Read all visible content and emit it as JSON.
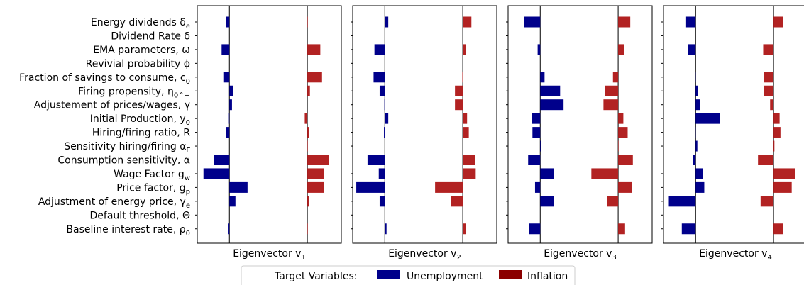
{
  "chart_data": {
    "type": "bar",
    "orientation": "horizontal",
    "categories": [
      "Energy dividends δ_e",
      "Dividend Rate δ",
      "EMA parameters, ω",
      "Revivial probability ϕ",
      "Fraction of savings to consume, c_0",
      "Firing propensity, η_0^−",
      "Adjustement of prices/wages, γ",
      "Initial Production, y_0",
      "Hiring/firing ratio, R",
      "Sensitivity hiring/firing α_Γ",
      "Consumption sensitivity, α",
      "Wage Factor g_w",
      "Price factor, g_p",
      "Adjustment of energy price, γ_e",
      "Default threshold, Θ",
      "Baseline interest rate, ρ_0"
    ],
    "panels": [
      {
        "xlabel": "Eigenvector v_1",
        "series": [
          {
            "name": "Unemployment",
            "values": [
              -0.04,
              0.0,
              -0.09,
              0.0,
              -0.07,
              0.04,
              0.03,
              -0.005,
              -0.04,
              0.0,
              -0.18,
              -0.3,
              0.21,
              0.07,
              0.0,
              -0.01
            ]
          },
          {
            "name": "Inflation",
            "values": [
              0.005,
              0.0,
              0.15,
              0.0,
              0.17,
              0.03,
              0.0,
              -0.03,
              0.02,
              0.005,
              0.25,
              0.19,
              0.19,
              0.02,
              0.0,
              0.005
            ]
          }
        ]
      },
      {
        "xlabel": "Eigenvector v_2",
        "series": [
          {
            "name": "Unemployment",
            "values": [
              0.04,
              0.0,
              -0.12,
              0.0,
              -0.13,
              -0.06,
              -0.005,
              0.04,
              -0.01,
              0.0,
              -0.2,
              -0.07,
              -0.33,
              -0.06,
              0.005,
              0.02
            ]
          },
          {
            "name": "Inflation",
            "values": [
              0.1,
              0.0,
              0.04,
              0.0,
              -0.005,
              -0.09,
              -0.09,
              0.05,
              0.07,
              0.0,
              0.14,
              0.15,
              -0.32,
              -0.14,
              0.0,
              0.04
            ]
          }
        ]
      },
      {
        "xlabel": "Eigenvector v_3",
        "series": [
          {
            "name": "Unemployment",
            "values": [
              -0.19,
              0.0,
              -0.03,
              0.0,
              0.05,
              0.23,
              0.27,
              -0.1,
              -0.09,
              0.01,
              -0.14,
              0.16,
              -0.06,
              0.16,
              0.0,
              -0.13
            ]
          },
          {
            "name": "Inflation",
            "values": [
              0.14,
              0.0,
              0.07,
              0.0,
              -0.06,
              -0.15,
              -0.17,
              0.06,
              0.11,
              0.005,
              0.17,
              -0.31,
              0.16,
              -0.13,
              0.0,
              0.08
            ]
          }
        ]
      },
      {
        "xlabel": "Eigenvector v_4",
        "series": [
          {
            "name": "Unemployment",
            "values": [
              -0.11,
              0.0,
              -0.09,
              0.0,
              -0.005,
              0.03,
              0.05,
              0.28,
              -0.01,
              0.02,
              -0.03,
              0.08,
              0.1,
              -0.31,
              0.0,
              -0.16
            ]
          },
          {
            "name": "Inflation",
            "values": [
              0.11,
              0.0,
              -0.12,
              0.0,
              -0.11,
              -0.11,
              -0.04,
              0.07,
              0.08,
              0.01,
              -0.18,
              0.25,
              0.21,
              -0.15,
              0.0,
              0.11
            ]
          }
        ]
      }
    ],
    "xlim": [
      -0.35,
      0.35
    ],
    "grid": false,
    "legend": {
      "title": "Target Variables:",
      "entries": [
        {
          "name": "Unemployment",
          "color": "#00008b"
        },
        {
          "name": "Inflation",
          "color": "#b22222"
        }
      ],
      "placement": "bottom-center"
    },
    "colors": {
      "unemployment": "#00008b",
      "inflation": "#b22222",
      "legend_inflation": "#8b0000"
    }
  }
}
